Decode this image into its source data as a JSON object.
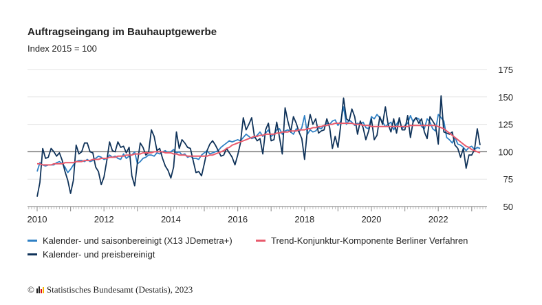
{
  "chart_data": {
    "type": "line",
    "title": "Auftragseingang im Bauhauptgewerbe",
    "subtitle": "Index 2015 = 100",
    "x_start": "2010-01",
    "frequency": "monthly",
    "x_tick_labels": [
      "2010",
      "2012",
      "2014",
      "2016",
      "2018",
      "2020",
      "2022"
    ],
    "y_tick_labels": [
      "50",
      "75",
      "100",
      "125",
      "150",
      "175"
    ],
    "ylim": [
      50,
      175
    ],
    "reference_line": 100,
    "grid": true,
    "legend_position": "bottom",
    "series": [
      {
        "name": "Kalender- und saisonbereinigt (X13 JDemetra+)",
        "color": "#2f80c4",
        "values": [
          82,
          90,
          88,
          87,
          88,
          88,
          88,
          90,
          91,
          89,
          86,
          81,
          84,
          88,
          91,
          92,
          92,
          91,
          93,
          91,
          92,
          94,
          96,
          95,
          93,
          94,
          97,
          95,
          96,
          94,
          93,
          98,
          94,
          96,
          97,
          100,
          89,
          91,
          94,
          95,
          97,
          97,
          96,
          99,
          98,
          100,
          101,
          99,
          100,
          102,
          99,
          100,
          97,
          98,
          95,
          96,
          94,
          94,
          93,
          97,
          99,
          101,
          98,
          99,
          100,
          101,
          104,
          106,
          108,
          110,
          109,
          110,
          111,
          110,
          113,
          116,
          114,
          112,
          113,
          115,
          118,
          114,
          117,
          120,
          114,
          116,
          120,
          121,
          116,
          119,
          120,
          118,
          116,
          121,
          118,
          122,
          133,
          116,
          120,
          118,
          119,
          122,
          121,
          124,
          126,
          125,
          128,
          129,
          124,
          128,
          141,
          125,
          129,
          127,
          124,
          126,
          125,
          127,
          122,
          121,
          132,
          130,
          134,
          131,
          127,
          123,
          125,
          127,
          120,
          125,
          129,
          121,
          124,
          126,
          133,
          127,
          131,
          130,
          123,
          121,
          130,
          127,
          121,
          119,
          134,
          131,
          128,
          113,
          111,
          108,
          113,
          107,
          106,
          104,
          101,
          104,
          105,
          102,
          104,
          103
        ]
      },
      {
        "name": "Trend-Konjunktur-Komponente Berliner Verfahren",
        "color": "#e85a6c",
        "values": [
          89,
          89,
          88,
          88,
          88,
          88,
          89,
          89,
          89,
          89,
          90,
          90,
          90,
          90,
          91,
          91,
          91,
          92,
          92,
          92,
          93,
          93,
          93,
          94,
          94,
          94,
          95,
          95,
          95,
          96,
          96,
          96,
          97,
          97,
          97,
          98,
          98,
          98,
          99,
          99,
          99,
          99,
          100,
          100,
          100,
          100,
          99,
          99,
          99,
          98,
          98,
          97,
          97,
          97,
          96,
          96,
          96,
          96,
          96,
          96,
          96,
          96,
          97,
          97,
          98,
          99,
          100,
          101,
          103,
          104,
          106,
          107,
          108,
          109,
          110,
          111,
          112,
          113,
          114,
          114,
          115,
          115,
          116,
          116,
          116,
          116,
          117,
          117,
          118,
          118,
          118,
          119,
          119,
          119,
          120,
          120,
          120,
          121,
          121,
          122,
          122,
          123,
          123,
          124,
          124,
          125,
          125,
          126,
          126,
          126,
          126,
          126,
          126,
          126,
          125,
          125,
          125,
          124,
          124,
          124,
          123,
          123,
          123,
          123,
          123,
          123,
          123,
          123,
          123,
          123,
          123,
          123,
          123,
          123,
          124,
          124,
          124,
          124,
          124,
          124,
          124,
          124,
          124,
          124,
          123,
          122,
          121,
          119,
          117,
          115,
          113,
          111,
          109,
          107,
          105,
          104,
          102,
          101,
          100,
          99
        ]
      },
      {
        "name": "Kalender- und preisbereinigt",
        "color": "#0f3259",
        "values": [
          59,
          72,
          103,
          94,
          95,
          103,
          100,
          96,
          99,
          92,
          82,
          74,
          62,
          74,
          106,
          98,
          100,
          108,
          108,
          100,
          99,
          86,
          82,
          70,
          77,
          92,
          109,
          101,
          100,
          109,
          104,
          105,
          99,
          104,
          78,
          69,
          90,
          108,
          104,
          97,
          99,
          120,
          114,
          101,
          103,
          94,
          87,
          83,
          76,
          86,
          118,
          103,
          111,
          108,
          104,
          103,
          92,
          81,
          82,
          78,
          89,
          101,
          107,
          110,
          106,
          101,
          96,
          97,
          103,
          99,
          95,
          88,
          97,
          108,
          131,
          120,
          125,
          131,
          114,
          110,
          112,
          98,
          120,
          126,
          110,
          111,
          127,
          113,
          98,
          140,
          128,
          118,
          132,
          126,
          118,
          112,
          93,
          120,
          134,
          125,
          130,
          117,
          119,
          120,
          130,
          122,
          103,
          114,
          104,
          125,
          149,
          130,
          128,
          139,
          132,
          116,
          128,
          122,
          111,
          119,
          130,
          111,
          115,
          132,
          125,
          141,
          125,
          118,
          130,
          117,
          131,
          120,
          120,
          133,
          113,
          128,
          131,
          126,
          130,
          118,
          112,
          132,
          128,
          124,
          107,
          151,
          118,
          117,
          116,
          118,
          106,
          103,
          95,
          103,
          85,
          97,
          97,
          102,
          121,
          106
        ]
      }
    ]
  },
  "source": {
    "copyright": "©",
    "text": "Statistisches Bundesamt (Destatis), 2023",
    "logo_colors": [
      "#222222",
      "#e30613",
      "#f4b400"
    ]
  }
}
